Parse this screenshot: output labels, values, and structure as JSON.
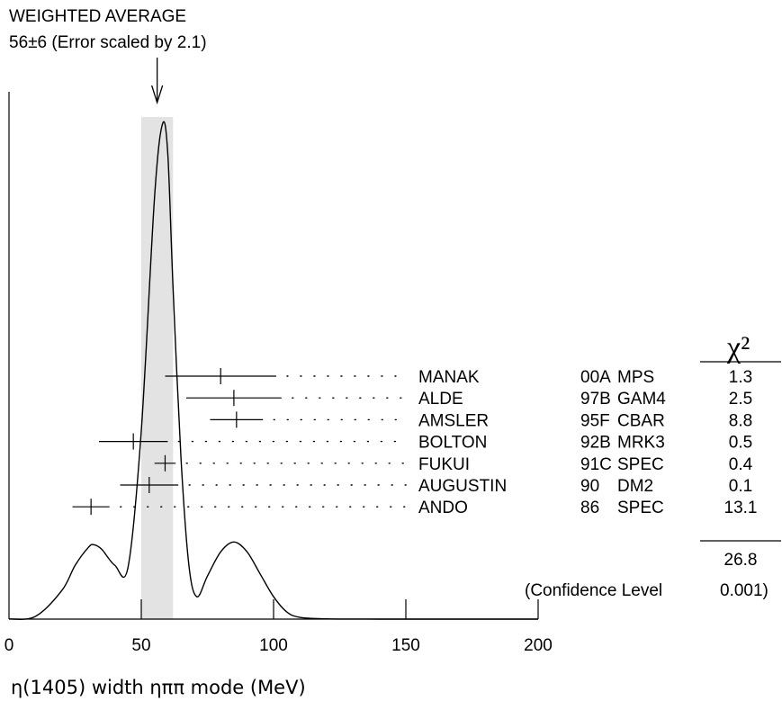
{
  "chart_data": {
    "type": "scatter",
    "title": "WEIGHTED AVERAGE",
    "subtitle": "56±6 (Error scaled by 2.1)",
    "weighted_average": {
      "value": 56,
      "error": 6,
      "scale_factor": 2.1,
      "band": [
        50,
        62
      ]
    },
    "xlabel": "η(1405) width ηππ mode (MeV)",
    "xlim": [
      0,
      200
    ],
    "x_ticks": [
      "0",
      "50",
      "100",
      "150",
      "200"
    ],
    "chi2_header": "χ²",
    "measurements": [
      {
        "author": "MANAK",
        "code": "00A",
        "experiment": "MPS",
        "value": 80,
        "err_low": 21,
        "err_high": 21,
        "chi2": "1.3"
      },
      {
        "author": "ALDE",
        "code": "97B",
        "experiment": "GAM4",
        "value": 85,
        "err_low": 18,
        "err_high": 18,
        "chi2": "2.5"
      },
      {
        "author": "AMSLER",
        "code": "95F",
        "experiment": "CBAR",
        "value": 86,
        "err_low": 10,
        "err_high": 10,
        "chi2": "8.8"
      },
      {
        "author": "BOLTON",
        "code": "92B",
        "experiment": "MRK3",
        "value": 47,
        "err_low": 13,
        "err_high": 13,
        "chi2": "0.5"
      },
      {
        "author": "FUKUI",
        "code": "91C",
        "experiment": "SPEC",
        "value": 59,
        "err_low": 4,
        "err_high": 4,
        "chi2": "0.4"
      },
      {
        "author": "AUGUSTIN",
        "code": "90",
        "experiment": "DM2",
        "value": 53,
        "err_low": 11,
        "err_high": 11,
        "chi2": "0.1"
      },
      {
        "author": "ANDO",
        "code": "86",
        "experiment": "SPEC",
        "value": 31,
        "err_low": 7,
        "err_high": 7,
        "chi2": "13.1"
      }
    ],
    "chi2_total": "26.8",
    "confidence_label": "(Confidence Level",
    "confidence_value": "0.001)",
    "ideogram": {
      "x": [
        0,
        10,
        20,
        25,
        30,
        32,
        35,
        40,
        45,
        50,
        55,
        58,
        60,
        62,
        65,
        68,
        71,
        75,
        80,
        85,
        90,
        95,
        100,
        105,
        110,
        120,
        130,
        140,
        150,
        200
      ],
      "y": [
        0.1,
        3,
        32,
        60,
        80,
        83,
        78,
        60,
        58,
        210,
        470,
        552,
        520,
        370,
        180,
        60,
        25,
        48,
        75,
        86,
        75,
        50,
        25,
        8,
        2,
        0.3,
        0.05,
        0.01,
        0,
        0
      ],
      "ylim": [
        0,
        560
      ]
    }
  }
}
